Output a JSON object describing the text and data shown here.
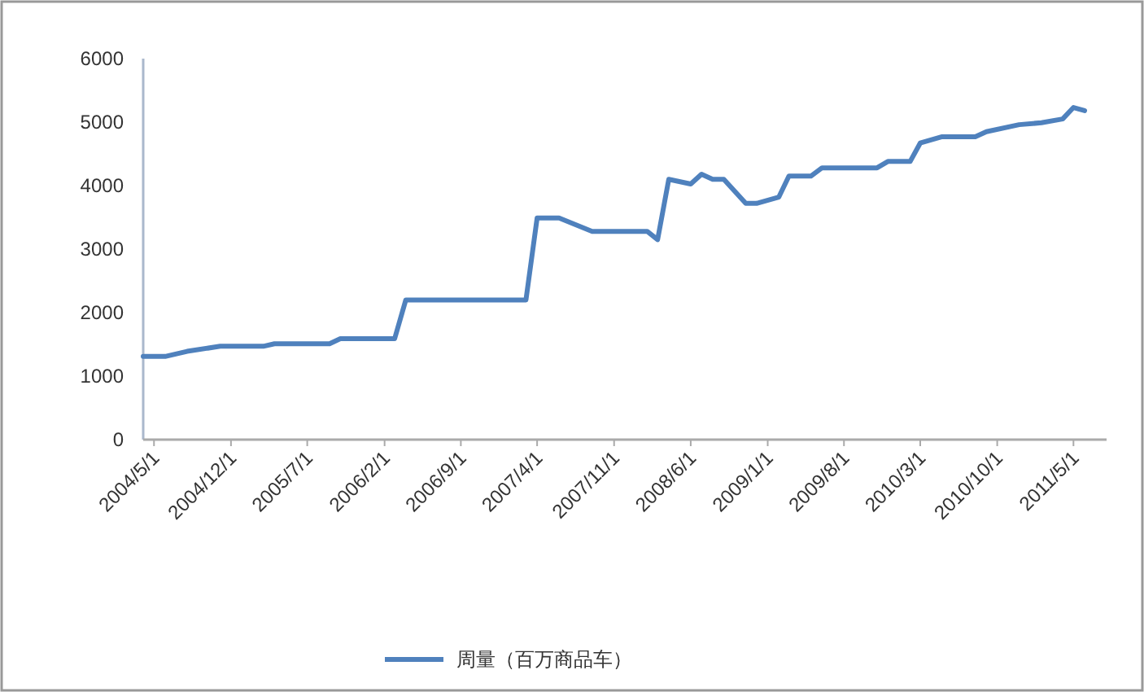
{
  "chart_data": {
    "type": "line",
    "legend": "bottom",
    "grid": false,
    "xlim": [
      "2004-04",
      "2011-08"
    ],
    "ylim": [
      0,
      6000
    ],
    "yticks": [
      0,
      1000,
      2000,
      3000,
      4000,
      5000,
      6000
    ],
    "xticks": [
      {
        "value": "2004-05",
        "label": "2004/5/1"
      },
      {
        "value": "2004-12",
        "label": "2004/12/1"
      },
      {
        "value": "2005-07",
        "label": "2005/7/1"
      },
      {
        "value": "2006-02",
        "label": "2006/2/1"
      },
      {
        "value": "2006-09",
        "label": "2006/9/1"
      },
      {
        "value": "2007-04",
        "label": "2007/4/1"
      },
      {
        "value": "2007-11",
        "label": "2007/11/1"
      },
      {
        "value": "2008-06",
        "label": "2008/6/1"
      },
      {
        "value": "2009-01",
        "label": "2009/1/1"
      },
      {
        "value": "2009-08",
        "label": "2009/8/1"
      },
      {
        "value": "2010-03",
        "label": "2010/3/1"
      },
      {
        "value": "2010-10",
        "label": "2010/10/1"
      },
      {
        "value": "2011-05",
        "label": "2011/5/1"
      }
    ],
    "x": [
      "2004-04",
      "2004-06",
      "2004-08",
      "2004-11",
      "2005-03",
      "2005-04",
      "2005-09",
      "2005-10",
      "2006-03",
      "2006-04",
      "2007-03",
      "2007-04",
      "2007-06",
      "2007-09",
      "2008-02",
      "2008-03",
      "2008-04",
      "2008-06",
      "2008-07",
      "2008-08",
      "2008-09",
      "2008-11",
      "2008-12",
      "2009-02",
      "2009-03",
      "2009-05",
      "2009-06",
      "2009-11",
      "2009-12",
      "2010-02",
      "2010-03",
      "2010-05",
      "2010-08",
      "2010-09",
      "2010-12",
      "2011-02",
      "2011-04",
      "2011-05",
      "2011-06"
    ],
    "series": [
      {
        "name": "周量（百万商品车）",
        "color": "#4f81bd",
        "values": [
          1310,
          1310,
          1390,
          1470,
          1470,
          1510,
          1510,
          1590,
          1590,
          2200,
          2200,
          3490,
          3490,
          3280,
          3280,
          3150,
          4100,
          4025,
          4180,
          4100,
          4100,
          3720,
          3720,
          3820,
          4150,
          4150,
          4280,
          4280,
          4380,
          4380,
          4670,
          4770,
          4770,
          4850,
          4960,
          4990,
          5050,
          5230,
          5180
        ]
      }
    ]
  }
}
